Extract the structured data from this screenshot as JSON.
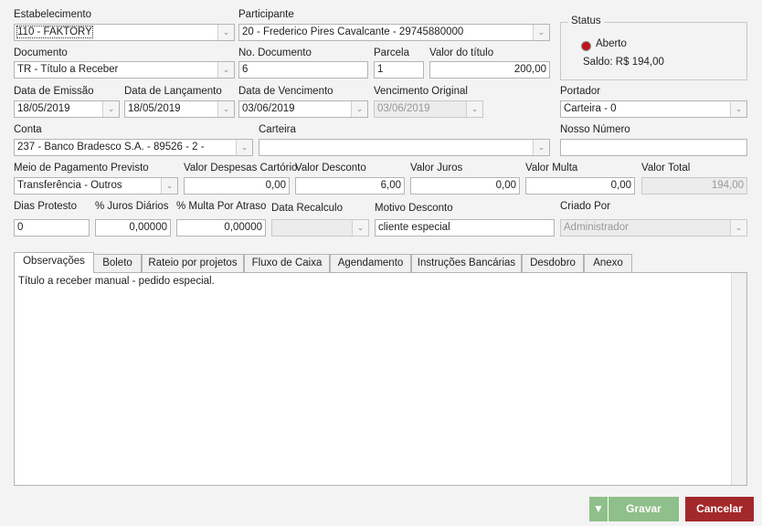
{
  "fields": {
    "estabelecimento": {
      "label": "Estabelecimento",
      "value": "110 - FAKTORY"
    },
    "participante": {
      "label": "Participante",
      "value": "20 - Frederico Pires Cavalcante - 29745880000"
    },
    "documento": {
      "label": "Documento",
      "value": "TR - Título a Receber"
    },
    "no_documento": {
      "label": "No. Documento",
      "value": "6"
    },
    "parcela": {
      "label": "Parcela",
      "value": "1"
    },
    "valor_titulo": {
      "label": "Valor do título",
      "value": "200,00"
    },
    "data_emissao": {
      "label": "Data de Emissão",
      "value": "18/05/2019"
    },
    "data_lancamento": {
      "label": "Data de Lançamento",
      "value": "18/05/2019"
    },
    "data_vencimento": {
      "label": "Data de Vencimento",
      "value": "03/06/2019"
    },
    "vencimento_original": {
      "label": "Vencimento Original",
      "value": "03/06/2019"
    },
    "portador": {
      "label": "Portador",
      "value": "Carteira - 0"
    },
    "conta": {
      "label": "Conta",
      "value": "237 - Banco Bradesco S.A. - 89526 - 2 -"
    },
    "carteira": {
      "label": "Carteira",
      "value": ""
    },
    "nosso_numero": {
      "label": "Nosso Número",
      "value": ""
    },
    "meio_pagamento": {
      "label": "Meio de Pagamento Previsto",
      "value": "Transferência - Outros"
    },
    "valor_despesas": {
      "label": "Valor Despesas Cartório",
      "value": "0,00"
    },
    "valor_desconto": {
      "label": "Valor Desconto",
      "value": "6,00"
    },
    "valor_juros": {
      "label": "Valor Juros",
      "value": "0,00"
    },
    "valor_multa": {
      "label": "Valor Multa",
      "value": "0,00"
    },
    "valor_total": {
      "label": "Valor Total",
      "value": "194,00"
    },
    "dias_protesto": {
      "label": "Dias Protesto",
      "value": "0"
    },
    "juros_diarios": {
      "label": "% Juros Diários",
      "value": "0,00000"
    },
    "multa_atraso": {
      "label": "% Multa Por Atraso",
      "value": "0,00000"
    },
    "data_recalculo": {
      "label": "Data Recalculo",
      "value": ""
    },
    "motivo_desconto": {
      "label": "Motivo Desconto",
      "value": "cliente especial"
    },
    "criado_por": {
      "label": "Criado Por",
      "value": "Administrador"
    }
  },
  "status": {
    "title": "Status",
    "value": "Aberto",
    "saldo": "Saldo: R$ 194,00",
    "color": "#c0151b"
  },
  "tabs": [
    "Observações",
    "Boleto",
    "Rateio por projetos",
    "Fluxo de Caixa",
    "Agendamento",
    "Instruções Bancárias",
    "Desdobro",
    "Anexo"
  ],
  "observacoes": "Título a receber manual - pedido especial.",
  "buttons": {
    "gravar": "Gravar",
    "gravar_arrow": "▼",
    "cancelar": "Cancelar"
  }
}
